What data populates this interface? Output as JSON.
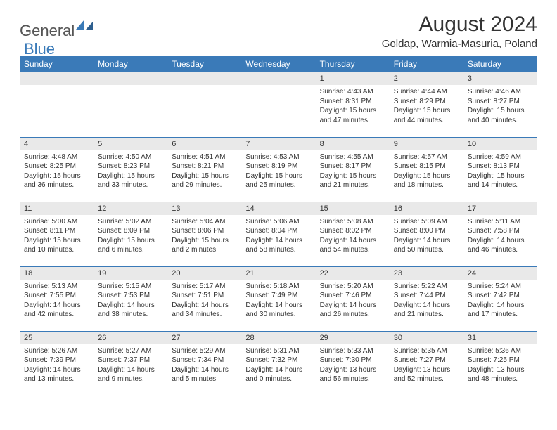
{
  "brand": {
    "part1": "General",
    "part2": "Blue"
  },
  "title": "August 2024",
  "location": "Goldap, Warmia-Masuria, Poland",
  "colors": {
    "header_bg": "#3a7ab8",
    "header_text": "#ffffff",
    "daynum_bg": "#e9e9e9",
    "text": "#333333",
    "border": "#3a7ab8",
    "page_bg": "#ffffff"
  },
  "day_names": [
    "Sunday",
    "Monday",
    "Tuesday",
    "Wednesday",
    "Thursday",
    "Friday",
    "Saturday"
  ],
  "weeks": [
    [
      null,
      null,
      null,
      null,
      {
        "n": "1",
        "sr": "Sunrise: 4:43 AM",
        "ss": "Sunset: 8:31 PM",
        "dl1": "Daylight: 15 hours",
        "dl2": "and 47 minutes."
      },
      {
        "n": "2",
        "sr": "Sunrise: 4:44 AM",
        "ss": "Sunset: 8:29 PM",
        "dl1": "Daylight: 15 hours",
        "dl2": "and 44 minutes."
      },
      {
        "n": "3",
        "sr": "Sunrise: 4:46 AM",
        "ss": "Sunset: 8:27 PM",
        "dl1": "Daylight: 15 hours",
        "dl2": "and 40 minutes."
      }
    ],
    [
      {
        "n": "4",
        "sr": "Sunrise: 4:48 AM",
        "ss": "Sunset: 8:25 PM",
        "dl1": "Daylight: 15 hours",
        "dl2": "and 36 minutes."
      },
      {
        "n": "5",
        "sr": "Sunrise: 4:50 AM",
        "ss": "Sunset: 8:23 PM",
        "dl1": "Daylight: 15 hours",
        "dl2": "and 33 minutes."
      },
      {
        "n": "6",
        "sr": "Sunrise: 4:51 AM",
        "ss": "Sunset: 8:21 PM",
        "dl1": "Daylight: 15 hours",
        "dl2": "and 29 minutes."
      },
      {
        "n": "7",
        "sr": "Sunrise: 4:53 AM",
        "ss": "Sunset: 8:19 PM",
        "dl1": "Daylight: 15 hours",
        "dl2": "and 25 minutes."
      },
      {
        "n": "8",
        "sr": "Sunrise: 4:55 AM",
        "ss": "Sunset: 8:17 PM",
        "dl1": "Daylight: 15 hours",
        "dl2": "and 21 minutes."
      },
      {
        "n": "9",
        "sr": "Sunrise: 4:57 AM",
        "ss": "Sunset: 8:15 PM",
        "dl1": "Daylight: 15 hours",
        "dl2": "and 18 minutes."
      },
      {
        "n": "10",
        "sr": "Sunrise: 4:59 AM",
        "ss": "Sunset: 8:13 PM",
        "dl1": "Daylight: 15 hours",
        "dl2": "and 14 minutes."
      }
    ],
    [
      {
        "n": "11",
        "sr": "Sunrise: 5:00 AM",
        "ss": "Sunset: 8:11 PM",
        "dl1": "Daylight: 15 hours",
        "dl2": "and 10 minutes."
      },
      {
        "n": "12",
        "sr": "Sunrise: 5:02 AM",
        "ss": "Sunset: 8:09 PM",
        "dl1": "Daylight: 15 hours",
        "dl2": "and 6 minutes."
      },
      {
        "n": "13",
        "sr": "Sunrise: 5:04 AM",
        "ss": "Sunset: 8:06 PM",
        "dl1": "Daylight: 15 hours",
        "dl2": "and 2 minutes."
      },
      {
        "n": "14",
        "sr": "Sunrise: 5:06 AM",
        "ss": "Sunset: 8:04 PM",
        "dl1": "Daylight: 14 hours",
        "dl2": "and 58 minutes."
      },
      {
        "n": "15",
        "sr": "Sunrise: 5:08 AM",
        "ss": "Sunset: 8:02 PM",
        "dl1": "Daylight: 14 hours",
        "dl2": "and 54 minutes."
      },
      {
        "n": "16",
        "sr": "Sunrise: 5:09 AM",
        "ss": "Sunset: 8:00 PM",
        "dl1": "Daylight: 14 hours",
        "dl2": "and 50 minutes."
      },
      {
        "n": "17",
        "sr": "Sunrise: 5:11 AM",
        "ss": "Sunset: 7:58 PM",
        "dl1": "Daylight: 14 hours",
        "dl2": "and 46 minutes."
      }
    ],
    [
      {
        "n": "18",
        "sr": "Sunrise: 5:13 AM",
        "ss": "Sunset: 7:55 PM",
        "dl1": "Daylight: 14 hours",
        "dl2": "and 42 minutes."
      },
      {
        "n": "19",
        "sr": "Sunrise: 5:15 AM",
        "ss": "Sunset: 7:53 PM",
        "dl1": "Daylight: 14 hours",
        "dl2": "and 38 minutes."
      },
      {
        "n": "20",
        "sr": "Sunrise: 5:17 AM",
        "ss": "Sunset: 7:51 PM",
        "dl1": "Daylight: 14 hours",
        "dl2": "and 34 minutes."
      },
      {
        "n": "21",
        "sr": "Sunrise: 5:18 AM",
        "ss": "Sunset: 7:49 PM",
        "dl1": "Daylight: 14 hours",
        "dl2": "and 30 minutes."
      },
      {
        "n": "22",
        "sr": "Sunrise: 5:20 AM",
        "ss": "Sunset: 7:46 PM",
        "dl1": "Daylight: 14 hours",
        "dl2": "and 26 minutes."
      },
      {
        "n": "23",
        "sr": "Sunrise: 5:22 AM",
        "ss": "Sunset: 7:44 PM",
        "dl1": "Daylight: 14 hours",
        "dl2": "and 21 minutes."
      },
      {
        "n": "24",
        "sr": "Sunrise: 5:24 AM",
        "ss": "Sunset: 7:42 PM",
        "dl1": "Daylight: 14 hours",
        "dl2": "and 17 minutes."
      }
    ],
    [
      {
        "n": "25",
        "sr": "Sunrise: 5:26 AM",
        "ss": "Sunset: 7:39 PM",
        "dl1": "Daylight: 14 hours",
        "dl2": "and 13 minutes."
      },
      {
        "n": "26",
        "sr": "Sunrise: 5:27 AM",
        "ss": "Sunset: 7:37 PM",
        "dl1": "Daylight: 14 hours",
        "dl2": "and 9 minutes."
      },
      {
        "n": "27",
        "sr": "Sunrise: 5:29 AM",
        "ss": "Sunset: 7:34 PM",
        "dl1": "Daylight: 14 hours",
        "dl2": "and 5 minutes."
      },
      {
        "n": "28",
        "sr": "Sunrise: 5:31 AM",
        "ss": "Sunset: 7:32 PM",
        "dl1": "Daylight: 14 hours",
        "dl2": "and 0 minutes."
      },
      {
        "n": "29",
        "sr": "Sunrise: 5:33 AM",
        "ss": "Sunset: 7:30 PM",
        "dl1": "Daylight: 13 hours",
        "dl2": "and 56 minutes."
      },
      {
        "n": "30",
        "sr": "Sunrise: 5:35 AM",
        "ss": "Sunset: 7:27 PM",
        "dl1": "Daylight: 13 hours",
        "dl2": "and 52 minutes."
      },
      {
        "n": "31",
        "sr": "Sunrise: 5:36 AM",
        "ss": "Sunset: 7:25 PM",
        "dl1": "Daylight: 13 hours",
        "dl2": "and 48 minutes."
      }
    ]
  ]
}
